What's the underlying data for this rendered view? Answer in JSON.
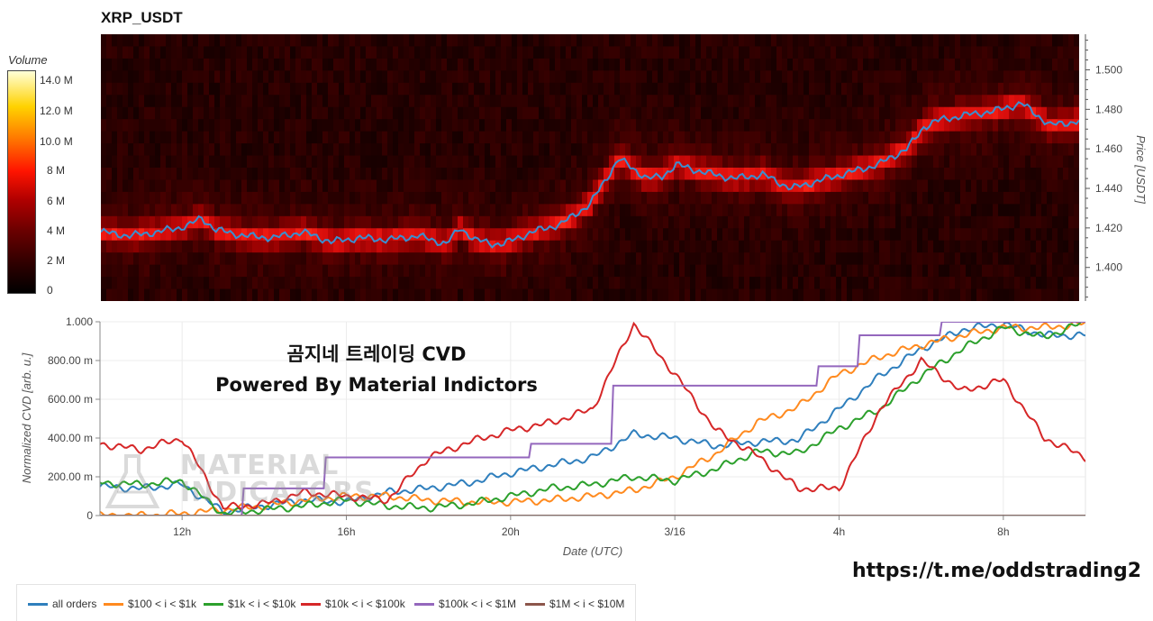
{
  "title": "XRP_USDT",
  "overlay": {
    "line1": "곰지네 트레이딩 CVD",
    "line2": "Powered By Material Indictors"
  },
  "watermark": {
    "line1": "MATERIAL",
    "line2": "INDICATORS"
  },
  "link": "https://t.me/oddstrading2",
  "colorbar": {
    "title": "Volume",
    "ticks": [
      "14.0 M",
      "12.0 M",
      "10.0 M",
      "8 M",
      "6 M",
      "4 M",
      "2 M",
      "0"
    ]
  },
  "chart_data": [
    {
      "type": "heatmap",
      "title": "XRP_USDT",
      "ylabel": "Price [USDT]",
      "ylim": [
        1.383,
        1.518
      ],
      "yticks": [
        "1.400",
        "1.420",
        "1.440",
        "1.460",
        "1.480",
        "1.500"
      ],
      "colorbar_label": "Volume",
      "colorbar_range": [
        0,
        15000000
      ],
      "price_series": {
        "name": "price",
        "color": "#3b8fd0",
        "x_hours": [
          0,
          1,
          2,
          3,
          3.5,
          4,
          5,
          6,
          7,
          8,
          9,
          10,
          11,
          12,
          12.5,
          13,
          13.3,
          13.6,
          14,
          15,
          16,
          17,
          18,
          19,
          19.5,
          20,
          21,
          22,
          23,
          24,
          25,
          26,
          27,
          28,
          28.3,
          28.6,
          29,
          30,
          31,
          31.5,
          32,
          33,
          34
        ],
        "values": [
          1.418,
          1.416,
          1.418,
          1.421,
          1.425,
          1.419,
          1.416,
          1.415,
          1.418,
          1.413,
          1.415,
          1.414,
          1.416,
          1.412,
          1.42,
          1.414,
          1.413,
          1.412,
          1.412,
          1.418,
          1.422,
          1.432,
          1.455,
          1.445,
          1.446,
          1.452,
          1.448,
          1.445,
          1.447,
          1.44,
          1.444,
          1.448,
          1.452,
          1.46,
          1.465,
          1.471,
          1.474,
          1.477,
          1.479,
          1.481,
          1.483,
          1.472,
          1.474
        ]
      }
    },
    {
      "type": "line",
      "xlabel": "Date (UTC)",
      "ylabel": "Normalized CVD [arb. u.]",
      "ylim": [
        0,
        1.0
      ],
      "yticks": [
        "0",
        "200.00 m",
        "400.00 m",
        "600.00 m",
        "800.00 m",
        "1.000"
      ],
      "xticks": [
        {
          "label": "12h",
          "hour": 2
        },
        {
          "label": "16h",
          "hour": 6
        },
        {
          "label": "20h",
          "hour": 10
        },
        {
          "label": "3/16",
          "hour": 14
        },
        {
          "label": "4h",
          "hour": 18
        },
        {
          "label": "8h",
          "hour": 22
        }
      ],
      "x_hours": [
        0,
        1,
        2,
        3,
        4,
        5,
        6,
        7,
        8,
        9,
        10,
        11,
        12,
        13,
        14,
        15,
        16,
        17,
        18,
        19,
        20,
        21,
        22,
        23,
        24
      ],
      "series": [
        {
          "name": "all orders",
          "color": "#2f7fbd",
          "values": [
            0.15,
            0.14,
            0.16,
            0.02,
            0.05,
            0.08,
            0.07,
            0.12,
            0.14,
            0.17,
            0.22,
            0.26,
            0.3,
            0.42,
            0.4,
            0.36,
            0.38,
            0.39,
            0.55,
            0.72,
            0.86,
            0.96,
            0.99,
            0.93,
            0.93
          ]
        },
        {
          "name": "$100 < i < $1k",
          "color": "#ff8a1f",
          "values": [
            0.0,
            0.0,
            0.01,
            0.03,
            0.05,
            0.08,
            0.1,
            0.1,
            0.08,
            0.07,
            0.07,
            0.08,
            0.1,
            0.13,
            0.2,
            0.32,
            0.48,
            0.56,
            0.73,
            0.82,
            0.88,
            0.93,
            0.97,
            0.97,
            0.99
          ]
        },
        {
          "name": "$1k < i < $10k",
          "color": "#2ca02c",
          "values": [
            0.17,
            0.16,
            0.18,
            0.01,
            0.03,
            0.05,
            0.08,
            0.05,
            0.04,
            0.06,
            0.1,
            0.14,
            0.16,
            0.2,
            0.18,
            0.24,
            0.33,
            0.32,
            0.45,
            0.55,
            0.72,
            0.86,
            0.97,
            0.92,
            1.0
          ]
        },
        {
          "name": "$10k < i < $100k",
          "color": "#d62728",
          "values": [
            0.37,
            0.34,
            0.4,
            0.04,
            0.06,
            0.12,
            0.1,
            0.08,
            0.3,
            0.38,
            0.44,
            0.48,
            0.55,
            0.99,
            0.73,
            0.44,
            0.31,
            0.14,
            0.14,
            0.55,
            0.8,
            0.64,
            0.7,
            0.4,
            0.3
          ]
        },
        {
          "name": "$100k < i < $1M",
          "color": "#9467bd",
          "values": [
            0.0,
            0.0,
            0.0,
            0.0,
            0.14,
            0.14,
            0.3,
            0.3,
            0.3,
            0.3,
            0.3,
            0.37,
            0.37,
            0.67,
            0.67,
            0.67,
            0.67,
            0.67,
            0.77,
            0.93,
            0.93,
            1.0,
            1.0,
            1.0,
            1.0
          ]
        },
        {
          "name": "$1M < i < $10M",
          "color": "#8c564b",
          "values": [
            0,
            0,
            0,
            0,
            0,
            0,
            0,
            0,
            0,
            0,
            0,
            0,
            0,
            0,
            0,
            0,
            0,
            0,
            0,
            0,
            0,
            0,
            0,
            0,
            0
          ]
        }
      ]
    }
  ]
}
